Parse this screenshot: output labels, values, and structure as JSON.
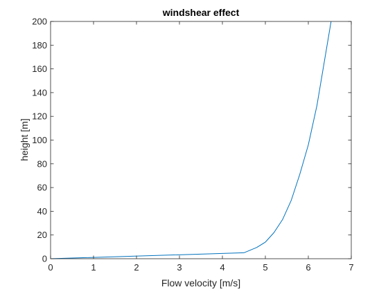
{
  "chart_data": {
    "type": "line",
    "title": "windshear effect",
    "xlabel": "Flow velocity [m/s]",
    "ylabel": "height [m]",
    "xlim": [
      0,
      7
    ],
    "ylim": [
      0,
      200
    ],
    "xticks": [
      0,
      1,
      2,
      3,
      4,
      5,
      6,
      7
    ],
    "yticks": [
      0,
      20,
      40,
      60,
      80,
      100,
      120,
      140,
      160,
      180,
      200
    ],
    "grid": false,
    "legend": "none",
    "series": [
      {
        "color": "#0072BD",
        "x": [
          0,
          4.5,
          4.8,
          5.0,
          5.2,
          5.4,
          5.6,
          5.8,
          6.0,
          6.2,
          6.4,
          6.53
        ],
        "y": [
          0,
          5,
          9.5,
          14,
          22,
          33,
          49,
          71,
          96,
          129,
          172,
          200
        ]
      }
    ]
  }
}
